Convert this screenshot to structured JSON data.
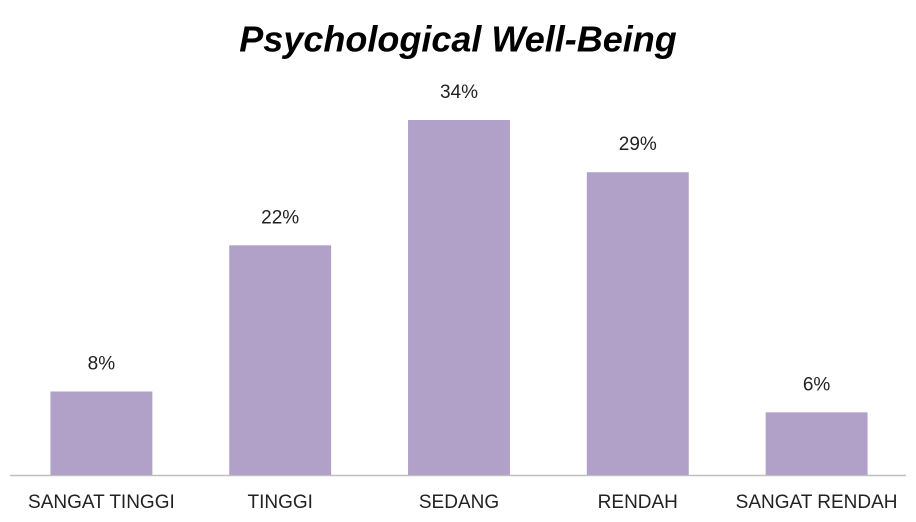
{
  "chart_data": {
    "type": "bar",
    "title": "Psychological Well-Being",
    "categories": [
      "SANGAT TINGGI",
      "TINGGI",
      "SEDANG",
      "RENDAH",
      "SANGAT RENDAH"
    ],
    "values": [
      8,
      22,
      34,
      29,
      6
    ],
    "value_labels": [
      "8%",
      "22%",
      "34%",
      "29%",
      "6%"
    ],
    "color": "#b1a1c8"
  }
}
